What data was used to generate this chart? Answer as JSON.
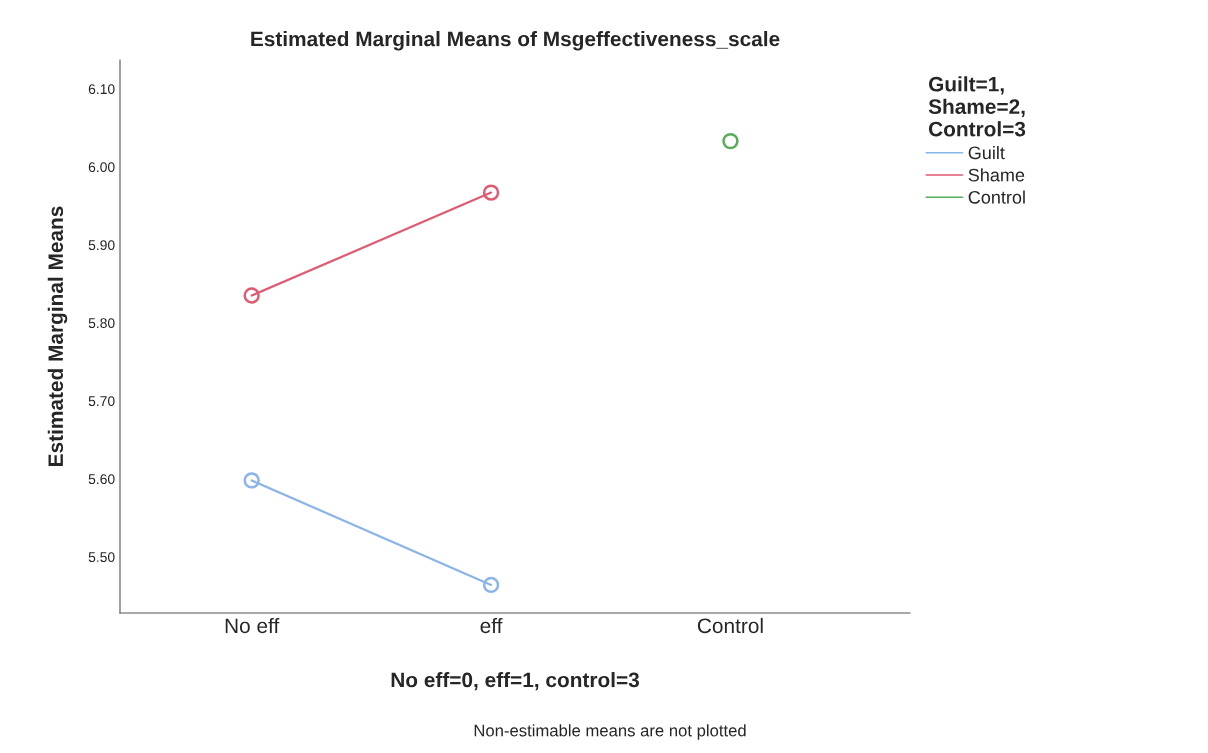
{
  "chart_data": {
    "type": "line",
    "title": "Estimated Marginal Means of Msgeffectiveness_scale",
    "xlabel": "No eff=0, eff=1, control=3",
    "ylabel": "Estimated Marginal Means",
    "legend_title": "Guilt=1,\nShame=2,\nControl=3",
    "categories": [
      "No eff",
      "eff",
      "Control"
    ],
    "series": [
      {
        "name": "Guilt",
        "color": "#8ab4ea",
        "values": [
          5.598,
          5.464,
          null
        ]
      },
      {
        "name": "Shame",
        "color": "#e05a72",
        "values": [
          5.835,
          5.967,
          null
        ]
      },
      {
        "name": "Control",
        "color": "#5aac5a",
        "values": [
          null,
          null,
          6.033
        ]
      }
    ],
    "ylim": [
      5.428,
      6.137
    ],
    "yticks": [
      {
        "value": 5.5,
        "label": "5.50"
      },
      {
        "value": 5.6,
        "label": "5.60"
      },
      {
        "value": 5.7,
        "label": "5.70"
      },
      {
        "value": 5.8,
        "label": "5.80"
      },
      {
        "value": 5.9,
        "label": "5.90"
      },
      {
        "value": 6.0,
        "label": "6.00"
      },
      {
        "value": 6.1,
        "label": "6.10"
      }
    ],
    "marker": "circle",
    "line_style": "solid",
    "grid": false,
    "legend": "right",
    "annotations": [
      "Non-estimable means are not plotted"
    ]
  }
}
